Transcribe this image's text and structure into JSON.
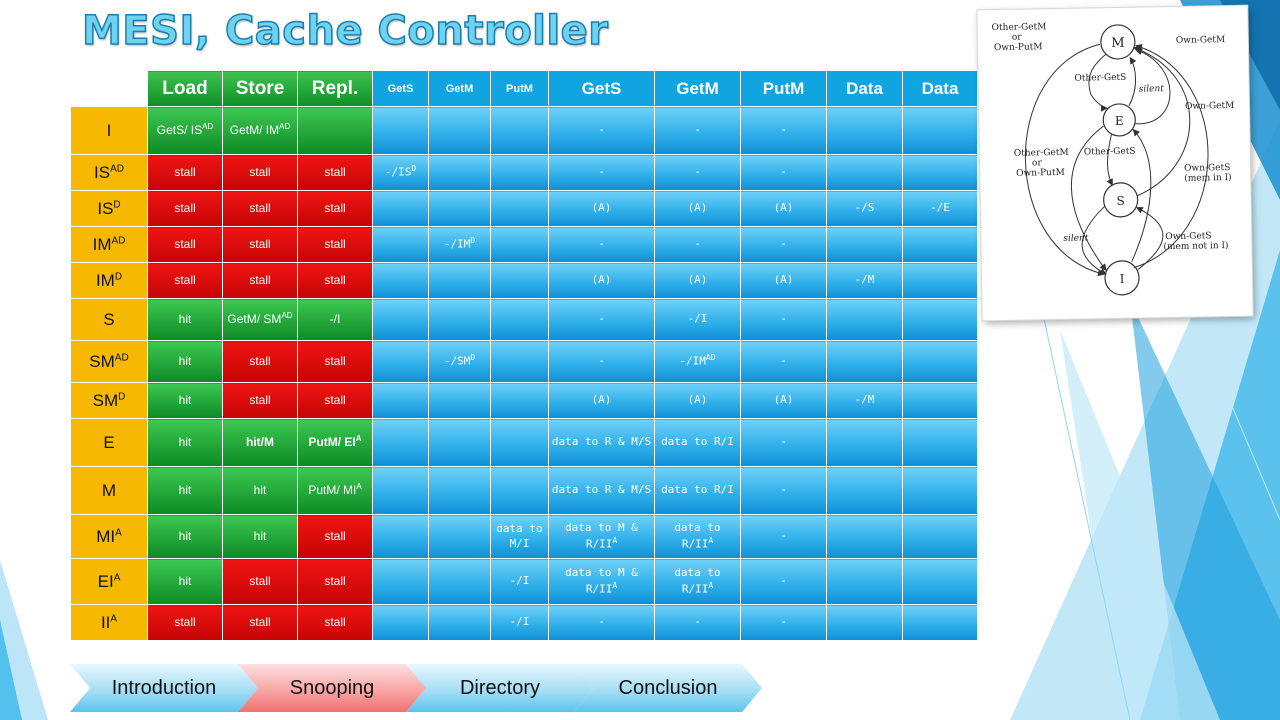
{
  "title": "MESI, Cache Controller",
  "table": {
    "headers": [
      "Load",
      "Store",
      "Repl.",
      "GetS",
      "GetM",
      "PutM",
      "GetS",
      "GetM",
      "PutM",
      "Data",
      "Data"
    ],
    "rows": [
      {
        "state": "I",
        "sup": "",
        "cells": [
          "GetS/ IS|AD",
          "GetM/ IM|AD",
          "",
          "",
          "",
          "",
          "-",
          "-",
          "-",
          "",
          ""
        ]
      },
      {
        "state": "IS",
        "sup": "AD",
        "cells": [
          "stall",
          "stall",
          "stall",
          "-/IS|D",
          "",
          "",
          "-",
          "-",
          "-",
          "",
          ""
        ]
      },
      {
        "state": "IS",
        "sup": "D",
        "cells": [
          "stall",
          "stall",
          "stall",
          "",
          "",
          "",
          "(A)",
          "(A)",
          "(A)",
          "-/S",
          "-/E"
        ]
      },
      {
        "state": "IM",
        "sup": "AD",
        "cells": [
          "stall",
          "stall",
          "stall",
          "",
          "-/IM|D",
          "",
          "-",
          "-",
          "-",
          "",
          ""
        ]
      },
      {
        "state": "IM",
        "sup": "D",
        "cells": [
          "stall",
          "stall",
          "stall",
          "",
          "",
          "",
          "(A)",
          "(A)",
          "(A)",
          "-/M",
          ""
        ]
      },
      {
        "state": "S",
        "sup": "",
        "cells": [
          "hit",
          "GetM/ SM|AD",
          "-/I",
          "",
          "",
          "",
          "-",
          "-/I",
          "-",
          "",
          ""
        ]
      },
      {
        "state": "SM",
        "sup": "AD",
        "cells": [
          "hit",
          "stall",
          "stall",
          "",
          "-/SM|D",
          "",
          "-",
          "-/IM|AD",
          "-",
          "",
          ""
        ]
      },
      {
        "state": "SM",
        "sup": "D",
        "cells": [
          "hit",
          "stall",
          "stall",
          "",
          "",
          "",
          "(A)",
          "(A)",
          "(A)",
          "-/M",
          ""
        ]
      },
      {
        "state": "E",
        "sup": "",
        "cells": [
          "hit",
          "hit/M",
          "PutM/ EI|A",
          "",
          "",
          "",
          "data to R & M/S",
          "data to R/I",
          "-",
          "",
          ""
        ]
      },
      {
        "state": "M",
        "sup": "",
        "cells": [
          "hit",
          "hit",
          "PutM/ MI|A",
          "",
          "",
          "",
          "data to R & M/S",
          "data to R/I",
          "-",
          "",
          ""
        ]
      },
      {
        "state": "MI",
        "sup": "A",
        "cells": [
          "hit",
          "hit",
          "stall",
          "",
          "",
          "data to M/I",
          "data to M & R/II|A",
          "data to R/II|A",
          "-",
          "",
          ""
        ]
      },
      {
        "state": "EI",
        "sup": "A",
        "cells": [
          "hit",
          "stall",
          "stall",
          "",
          "",
          "-/I",
          "data to M & R/II|A",
          "data to R/II|A",
          "-",
          "",
          ""
        ]
      },
      {
        "state": "II",
        "sup": "A",
        "cells": [
          "stall",
          "stall",
          "stall",
          "",
          "",
          "-/I",
          "-",
          "-",
          "-",
          "",
          ""
        ]
      }
    ]
  },
  "diagram": {
    "states": [
      "M",
      "E",
      "S",
      "I"
    ],
    "labels": {
      "other_getm_or_own_putm_top": [
        "Other-GetM",
        "or",
        "Own-PutM"
      ],
      "own_getm_top": "Own-GetM",
      "other_gets": "Other-GetS",
      "silent_top": "silent",
      "own_getm_mid": "Own-GetM",
      "other_getm_or_own_putm_mid": [
        "Other-GetM",
        "or",
        "Own-PutM"
      ],
      "other_gets_mid": "Other-GetS",
      "own_gets_mem_in_i": [
        "Own-GetS",
        "(mem in I)"
      ],
      "silent_bottom": "silent",
      "own_gets_mem_not_in_i": [
        "Own-GetS",
        "(mem not in I)"
      ]
    }
  },
  "nav": {
    "items": [
      "Introduction",
      "Snooping",
      "Directory",
      "Conclusion"
    ],
    "active": "Snooping",
    "colors": {
      "inactive": "#9fdcf4",
      "active": "#f8a0a0"
    }
  },
  "colors": {
    "header_blue": "#10a5e0",
    "state_yellow": "#f6b800",
    "hit_green": "#0e8a24",
    "stall_red": "#e00a0a",
    "cell_blue": "#30b0ea"
  }
}
